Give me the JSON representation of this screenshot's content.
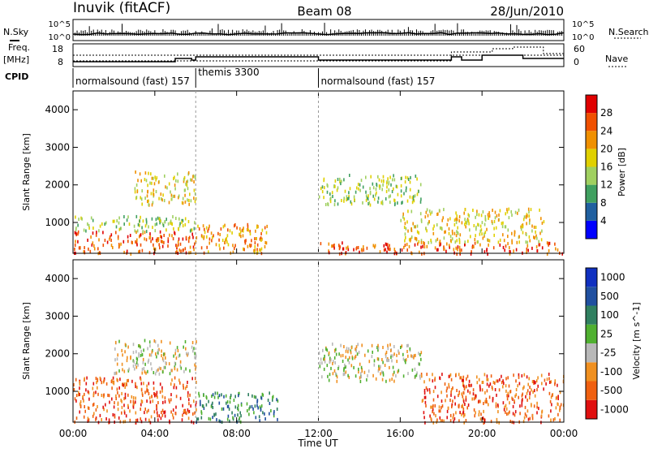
{
  "header": {
    "station": "Inuvik (fitACF)",
    "beam": "Beam 08",
    "date": "28/Jun/2010"
  },
  "noise_panel": {
    "left_label": "N.Sky",
    "right_label": "N.Search",
    "left_ticks": [
      "10^5",
      "10^0"
    ],
    "right_ticks": [
      "10^5",
      "10^0"
    ]
  },
  "freq_panel": {
    "left_label_line1": "Freq.",
    "left_label_line2": "[MHz]",
    "right_label": "Nave",
    "left_ticks": [
      "18",
      "8"
    ],
    "right_ticks": [
      "60",
      "0"
    ]
  },
  "cpid": {
    "label": "CPID",
    "segments": [
      {
        "text": "normalsound (fast) 157",
        "start_h": 0,
        "end_h": 6
      },
      {
        "text": "themis 3300",
        "start_h": 6,
        "end_h": 12
      },
      {
        "text": "normalsound (fast) 157",
        "start_h": 12,
        "end_h": 24
      }
    ]
  },
  "x_axis": {
    "label": "Time UT",
    "ticks": [
      "00:00",
      "04:00",
      "08:00",
      "12:00",
      "16:00",
      "20:00",
      "00:00"
    ]
  },
  "power_panel": {
    "ylabel": "Slant Range [km]",
    "yticks": [
      "1000",
      "2000",
      "3000",
      "4000"
    ],
    "colorbar_label": "Power [dB]",
    "colorbar_ticks": [
      "28",
      "24",
      "20",
      "16",
      "12",
      "8",
      "4"
    ],
    "colors": [
      "#0000ff",
      "#2060a0",
      "#40a060",
      "#a0d060",
      "#e0d000",
      "#f09000",
      "#f05000",
      "#e00000"
    ]
  },
  "velocity_panel": {
    "ylabel": "Slant Range [km]",
    "yticks": [
      "1000",
      "2000",
      "3000",
      "4000"
    ],
    "colorbar_label": "Velocity [m s^-1]",
    "colorbar_ticks": [
      "1000",
      "500",
      "100",
      "25",
      "-25",
      "-100",
      "-500",
      "-1000"
    ],
    "colors": [
      "#1030c0",
      "#2050a0",
      "#308060",
      "#50b030",
      "#b8b8b8",
      "#f09020",
      "#f06010",
      "#e01010"
    ]
  },
  "chart_data": {
    "type": "heatmap",
    "x_range_hours": [
      0,
      24
    ],
    "y_range_km": [
      180,
      4500
    ],
    "power_regions": [
      {
        "t0": 0,
        "t1": 6,
        "r0": 200,
        "r1": 800,
        "level": 6
      },
      {
        "t0": 0,
        "t1": 6,
        "r0": 800,
        "r1": 1200,
        "level": 3
      },
      {
        "t0": 3,
        "t1": 6,
        "r0": 1500,
        "r1": 2400,
        "level": 4
      },
      {
        "t0": 6,
        "t1": 9.5,
        "r0": 200,
        "r1": 1000,
        "level": 5
      },
      {
        "t0": 12,
        "t1": 17,
        "r0": 1500,
        "r1": 2300,
        "level": 3
      },
      {
        "t0": 12,
        "t1": 24,
        "r0": 200,
        "r1": 500,
        "level": 6
      },
      {
        "t0": 16,
        "t1": 23,
        "r0": 500,
        "r1": 1400,
        "level": 4
      }
    ],
    "velocity_regions": [
      {
        "t0": 0,
        "t1": 6,
        "r0": 200,
        "r1": 1400,
        "level": 6
      },
      {
        "t0": 2,
        "t1": 6,
        "r0": 1500,
        "r1": 2400,
        "level": 4
      },
      {
        "t0": 6,
        "t1": 10,
        "r0": 200,
        "r1": 1000,
        "level": 2
      },
      {
        "t0": 12,
        "t1": 17,
        "r0": 1300,
        "r1": 2300,
        "level": 4
      },
      {
        "t0": 17,
        "t1": 24,
        "r0": 200,
        "r1": 1500,
        "level": 6
      }
    ]
  }
}
